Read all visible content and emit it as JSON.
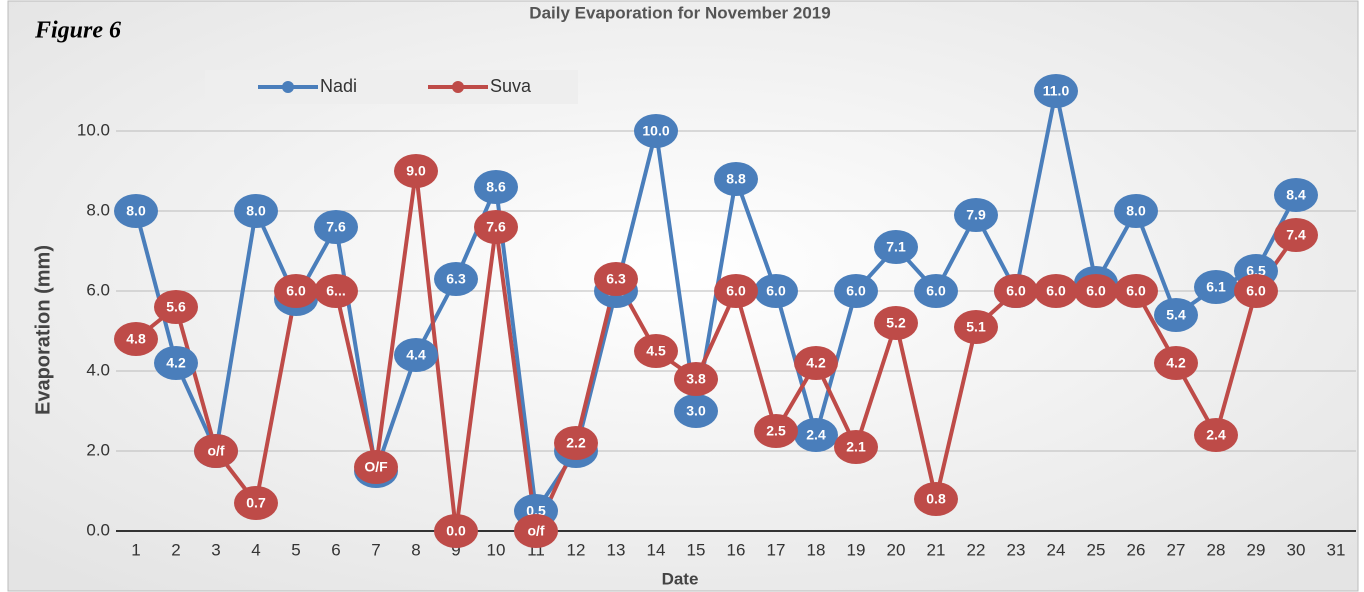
{
  "chart_data": {
    "type": "line",
    "title": "Daily Evaporation for November 2019",
    "figure_label": "Figure 6",
    "x_label": "Date",
    "y_label": "Evaporation (mm)",
    "categories": [
      "1",
      "2",
      "3",
      "4",
      "5",
      "6",
      "7",
      "8",
      "9",
      "10",
      "11",
      "12",
      "13",
      "14",
      "15",
      "16",
      "17",
      "18",
      "19",
      "20",
      "21",
      "22",
      "23",
      "24",
      "25",
      "26",
      "27",
      "28",
      "29",
      "30",
      "31"
    ],
    "series": [
      {
        "name": "Nadi",
        "color": "#4a7ebb",
        "values": [
          8.0,
          4.2,
          2.0,
          8.0,
          5.8,
          7.6,
          1.5,
          4.4,
          6.3,
          8.6,
          0.5,
          2.0,
          6.0,
          10.0,
          3.0,
          8.8,
          6.0,
          2.4,
          6.0,
          7.1,
          6.0,
          7.9,
          6.0,
          11.0,
          6.2,
          8.0,
          5.4,
          6.1,
          6.5,
          8.4,
          null
        ],
        "value_labels": [
          "8.0",
          "4.2",
          "2.0",
          "8.0",
          "5.8",
          "7.6",
          "1.5",
          "4.4",
          "6.3",
          "8.6",
          "0.5",
          "2.0",
          "6.0",
          "10.0",
          "3.0",
          "8.8",
          "6.0",
          "2.4",
          "6.0",
          "7.1",
          "6.0",
          "7.9",
          "6.0",
          "11.0",
          "6.2",
          "8.0",
          "5.4",
          "6.1",
          "6.5",
          "8.4",
          null
        ]
      },
      {
        "name": "Suva",
        "color": "#be4b48",
        "values": [
          4.8,
          5.6,
          2.0,
          0.7,
          6.0,
          6.0,
          1.6,
          9.0,
          0.0,
          7.6,
          0.0,
          2.2,
          6.3,
          4.5,
          3.8,
          6.0,
          2.5,
          4.2,
          2.1,
          5.2,
          0.8,
          5.1,
          6.0,
          6.0,
          6.0,
          6.0,
          4.2,
          2.4,
          6.0,
          7.4,
          null
        ],
        "value_labels": [
          "4.8",
          "5.6",
          "o/f",
          "0.7",
          "6.0",
          "6...",
          "O/F",
          "9.0",
          "0.0",
          "7.6",
          "o/f",
          "2.2",
          "6.3",
          "4.5",
          "3.8",
          "6.0",
          "2.5",
          "4.2",
          "2.1",
          "5.2",
          "0.8",
          "5.1",
          "6.0",
          "6.0",
          "6.0",
          "6.0",
          "4.2",
          "2.4",
          "6.0",
          "7.4",
          null
        ]
      }
    ],
    "ylim": [
      0,
      12
    ],
    "yticks": [
      {
        "value": 0,
        "label": "0.0"
      },
      {
        "value": 2,
        "label": "2.0"
      },
      {
        "value": 4,
        "label": "4.0"
      },
      {
        "value": 6,
        "label": "6.0"
      },
      {
        "value": 8,
        "label": "8.0"
      },
      {
        "value": 10,
        "label": "10.0"
      }
    ],
    "grid": true,
    "legend": "top-left"
  }
}
